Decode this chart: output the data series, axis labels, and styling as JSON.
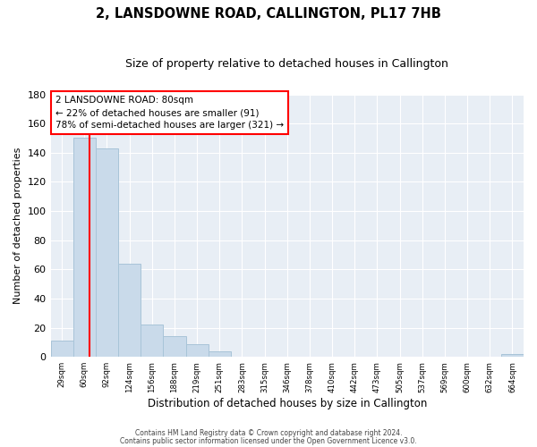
{
  "title": "2, LANSDOWNE ROAD, CALLINGTON, PL17 7HB",
  "subtitle": "Size of property relative to detached houses in Callington",
  "xlabel": "Distribution of detached houses by size in Callington",
  "ylabel": "Number of detached properties",
  "bin_labels": [
    "29sqm",
    "60sqm",
    "92sqm",
    "124sqm",
    "156sqm",
    "188sqm",
    "219sqm",
    "251sqm",
    "283sqm",
    "315sqm",
    "346sqm",
    "378sqm",
    "410sqm",
    "442sqm",
    "473sqm",
    "505sqm",
    "537sqm",
    "569sqm",
    "600sqm",
    "632sqm",
    "664sqm"
  ],
  "bar_heights": [
    11,
    150,
    143,
    64,
    22,
    14,
    9,
    4,
    0,
    0,
    0,
    0,
    0,
    0,
    0,
    0,
    0,
    0,
    0,
    0,
    2
  ],
  "bar_color": "#c9daea",
  "bar_edge_color": "#a8c4d8",
  "ylim": [
    0,
    180
  ],
  "yticks": [
    0,
    20,
    40,
    60,
    80,
    100,
    120,
    140,
    160,
    180
  ],
  "property_line_x": 1.72,
  "property_line_label": "2 LANSDOWNE ROAD: 80sqm",
  "annotation_smaller": "← 22% of detached houses are smaller (91)",
  "annotation_larger": "78% of semi-detached houses are larger (321) →",
  "footer1": "Contains HM Land Registry data © Crown copyright and database right 2024.",
  "footer2": "Contains public sector information licensed under the Open Government Licence v3.0.",
  "background_color": "#e8eef5"
}
